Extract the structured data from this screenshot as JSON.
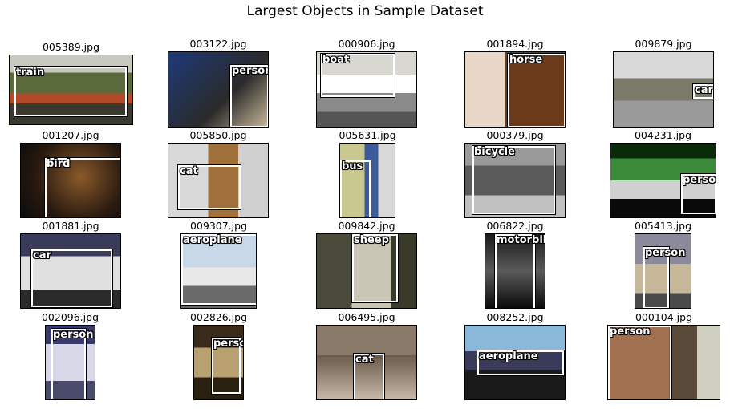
{
  "figure": {
    "title": "Largest Objects in Sample Dataset"
  },
  "images": [
    {
      "file": "005389.jpg",
      "label": "train"
    },
    {
      "file": "003122.jpg",
      "label": "person"
    },
    {
      "file": "000906.jpg",
      "label": "boat"
    },
    {
      "file": "001894.jpg",
      "label": "horse"
    },
    {
      "file": "009879.jpg",
      "label": "car"
    },
    {
      "file": "001207.jpg",
      "label": "bird"
    },
    {
      "file": "005850.jpg",
      "label": "cat"
    },
    {
      "file": "005631.jpg",
      "label": "bus"
    },
    {
      "file": "000379.jpg",
      "label": "bicycle"
    },
    {
      "file": "004231.jpg",
      "label": "person"
    },
    {
      "file": "001881.jpg",
      "label": "car"
    },
    {
      "file": "009307.jpg",
      "label": "aeroplane"
    },
    {
      "file": "009842.jpg",
      "label": "sheep"
    },
    {
      "file": "006822.jpg",
      "label": "motorbike"
    },
    {
      "file": "005413.jpg",
      "label": "person"
    },
    {
      "file": "002096.jpg",
      "label": "person"
    },
    {
      "file": "002826.jpg",
      "label": "person"
    },
    {
      "file": "006495.jpg",
      "label": "cat"
    },
    {
      "file": "008252.jpg",
      "label": "aeroplane"
    },
    {
      "file": "000104.jpg",
      "label": "person"
    }
  ]
}
